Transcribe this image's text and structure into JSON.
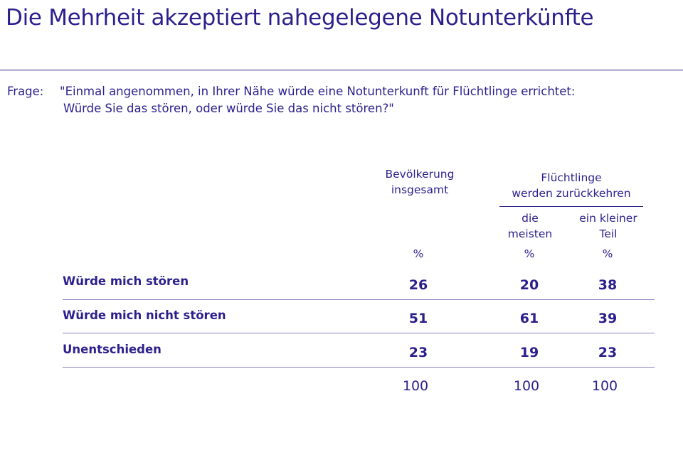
{
  "title": "Die Mehrheit akzeptiert nahegelegene Notunterkünfte",
  "question": {
    "label": "Frage:",
    "line1": "\"Einmal angenommen, in Ihrer Nähe würde eine Notunterkunft für Flüchtlinge errichtet:",
    "line2": "Würde Sie das stören, oder würde Sie das nicht stören?\""
  },
  "headers": {
    "col1": [
      "Bevölkerung",
      "insgesamt"
    ],
    "group": [
      "Flüchtlinge",
      "werden zurückkehren"
    ],
    "col2": [
      "die",
      "meisten"
    ],
    "col3": [
      "ein kleiner",
      "Teil"
    ],
    "unit": "%"
  },
  "chart_data": {
    "type": "table",
    "columns": [
      "Bevölkerung insgesamt",
      "Flüchtlinge werden zurückkehren: die meisten",
      "Flüchtlinge werden zurückkehren: ein kleiner Teil"
    ],
    "unit": "%",
    "rows": [
      {
        "label": "Würde mich stören",
        "values": [
          "26",
          "20",
          "38"
        ]
      },
      {
        "label": "Würde mich nicht stören",
        "values": [
          "51",
          "61",
          "39"
        ]
      },
      {
        "label": "Unentschieden",
        "values": [
          "23",
          "19",
          "23"
        ]
      }
    ],
    "totals": [
      "100",
      "100",
      "100"
    ]
  }
}
